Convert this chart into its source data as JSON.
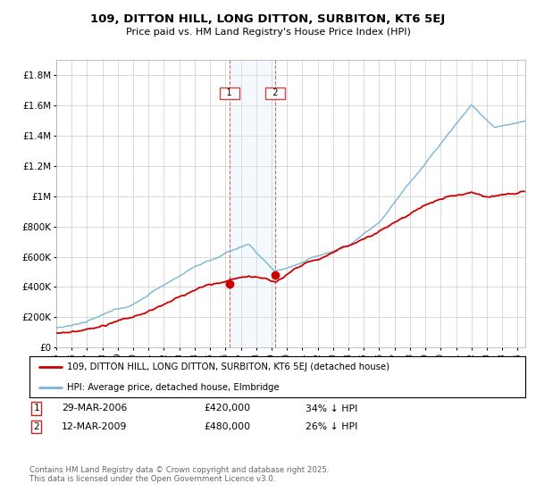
{
  "title": "109, DITTON HILL, LONG DITTON, SURBITON, KT6 5EJ",
  "subtitle": "Price paid vs. HM Land Registry's House Price Index (HPI)",
  "ylabel_ticks": [
    "£0",
    "£200K",
    "£400K",
    "£600K",
    "£800K",
    "£1M",
    "£1.2M",
    "£1.4M",
    "£1.6M",
    "£1.8M"
  ],
  "ytick_values": [
    0,
    200000,
    400000,
    600000,
    800000,
    1000000,
    1200000,
    1400000,
    1600000,
    1800000
  ],
  "ylim": [
    0,
    1900000
  ],
  "hpi_color": "#7ab4d8",
  "price_color": "#cc0000",
  "vline_color": "#dd6666",
  "shade_color": "#d0e8f5",
  "marker1_year": 2006.25,
  "marker2_year": 2009.25,
  "marker1_price": 420000,
  "marker2_price": 480000,
  "legend_line1": "109, DITTON HILL, LONG DITTON, SURBITON, KT6 5EJ (detached house)",
  "legend_line2": "HPI: Average price, detached house, Elmbridge",
  "table_row1": [
    "1",
    "29-MAR-2006",
    "£420,000",
    "34% ↓ HPI"
  ],
  "table_row2": [
    "2",
    "12-MAR-2009",
    "£480,000",
    "26% ↓ HPI"
  ],
  "footer": "Contains HM Land Registry data © Crown copyright and database right 2025.\nThis data is licensed under the Open Government Licence v3.0.",
  "background_color": "#ffffff",
  "grid_color": "#cccccc",
  "xlim_start": 1995,
  "xlim_end": 2025.5
}
